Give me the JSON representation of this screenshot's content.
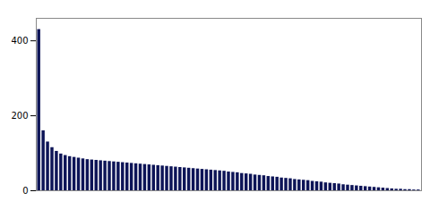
{
  "chart_data": {
    "type": "bar",
    "categories": [
      null,
      null,
      null,
      null,
      null,
      null,
      null,
      null,
      null,
      null,
      null,
      null,
      null,
      null,
      null,
      null,
      null,
      null,
      null,
      null,
      null,
      null,
      null,
      null,
      null,
      null,
      null,
      null,
      null,
      null,
      null,
      null,
      null,
      null,
      null,
      null,
      null,
      null,
      null,
      null,
      null,
      null,
      null,
      null,
      null,
      null,
      null,
      null,
      null,
      null,
      null,
      null,
      null,
      null,
      null,
      null,
      null,
      null,
      null,
      null,
      null,
      null,
      null,
      null,
      null,
      null,
      null,
      null,
      null,
      null,
      null,
      null,
      null,
      null,
      null,
      null,
      null,
      null,
      null,
      null,
      null,
      null,
      null,
      null,
      null,
      null,
      null
    ],
    "values": [
      430,
      160,
      130,
      115,
      105,
      98,
      94,
      91,
      89,
      87,
      85,
      83,
      82,
      81,
      80,
      79,
      78,
      77,
      76,
      75,
      74,
      73,
      72,
      71,
      70,
      69,
      68,
      67,
      66,
      65,
      64,
      63,
      62,
      61,
      60,
      59,
      58,
      57,
      56,
      55,
      54,
      53,
      52,
      50,
      49,
      48,
      46,
      45,
      44,
      42,
      41,
      40,
      38,
      37,
      36,
      34,
      33,
      32,
      30,
      29,
      28,
      27,
      25,
      24,
      23,
      21,
      20,
      19,
      18,
      16,
      15,
      14,
      13,
      12,
      11,
      10,
      9,
      8,
      7,
      6,
      5,
      4,
      4,
      3,
      3,
      2,
      2
    ],
    "color": "#0d1457",
    "ylim": [
      0,
      460
    ],
    "yticks": [
      0,
      200,
      400
    ],
    "grid": false,
    "tick_labels": "y"
  }
}
